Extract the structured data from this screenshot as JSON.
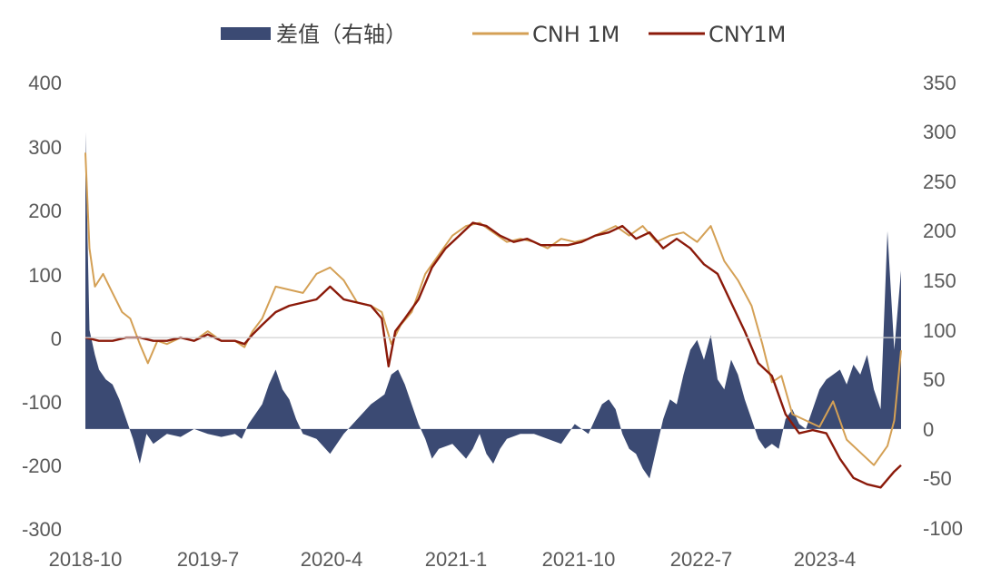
{
  "chart_data": {
    "type": "line",
    "legend": [
      {
        "label": "差值（右轴）",
        "kind": "area",
        "color": "#3b4a73"
      },
      {
        "label": "CNH 1M",
        "kind": "line",
        "color": "#d4a055"
      },
      {
        "label": "CNY1M",
        "kind": "line",
        "color": "#8b1a0a"
      }
    ],
    "legend_position": "top-center",
    "grid": false,
    "x_tick_labels": [
      "2018-10",
      "2019-7",
      "2020-4",
      "2021-1",
      "2021-10",
      "2022-7",
      "2023-4"
    ],
    "y_left": {
      "range": [
        -300,
        400
      ],
      "ticks": [
        "400",
        "300",
        "200",
        "100",
        "0",
        "-100",
        "-200",
        "-300"
      ]
    },
    "y_right": {
      "range": [
        -100,
        350
      ],
      "ticks": [
        "350",
        "300",
        "250",
        "200",
        "150",
        "100",
        "50",
        "0",
        "-50",
        "-100"
      ]
    },
    "x_domain": [
      0,
      60
    ],
    "series": [
      {
        "name": "CNH 1M",
        "axis": "left",
        "color": "#d4a055",
        "points": [
          [
            0,
            290
          ],
          [
            0.3,
            140
          ],
          [
            0.7,
            80
          ],
          [
            1.3,
            100
          ],
          [
            2,
            70
          ],
          [
            2.7,
            40
          ],
          [
            3.3,
            30
          ],
          [
            4,
            -10
          ],
          [
            4.6,
            -40
          ],
          [
            5.3,
            -5
          ],
          [
            6,
            -10
          ],
          [
            7,
            0
          ],
          [
            8,
            -5
          ],
          [
            9,
            10
          ],
          [
            10,
            -5
          ],
          [
            11,
            -5
          ],
          [
            11.7,
            -15
          ],
          [
            12.3,
            10
          ],
          [
            13,
            30
          ],
          [
            14,
            80
          ],
          [
            15,
            75
          ],
          [
            16,
            70
          ],
          [
            17,
            100
          ],
          [
            18,
            110
          ],
          [
            19,
            90
          ],
          [
            20,
            55
          ],
          [
            21,
            50
          ],
          [
            21.8,
            40
          ],
          [
            22.5,
            -10
          ],
          [
            23.2,
            20
          ],
          [
            24,
            40
          ],
          [
            25,
            100
          ],
          [
            26,
            130
          ],
          [
            27,
            160
          ],
          [
            28,
            175
          ],
          [
            29,
            180
          ],
          [
            30,
            165
          ],
          [
            31,
            150
          ],
          [
            32,
            155
          ],
          [
            33,
            150
          ],
          [
            34,
            140
          ],
          [
            35,
            155
          ],
          [
            36,
            150
          ],
          [
            37,
            155
          ],
          [
            38,
            165
          ],
          [
            39,
            175
          ],
          [
            40,
            160
          ],
          [
            41,
            175
          ],
          [
            42,
            150
          ],
          [
            43,
            160
          ],
          [
            44,
            165
          ],
          [
            45,
            150
          ],
          [
            46,
            175
          ],
          [
            47,
            120
          ],
          [
            48,
            90
          ],
          [
            49,
            50
          ],
          [
            49.8,
            -10
          ],
          [
            50.5,
            -70
          ],
          [
            51.2,
            -60
          ],
          [
            52,
            -120
          ],
          [
            53,
            -130
          ],
          [
            54,
            -140
          ],
          [
            55,
            -100
          ],
          [
            56,
            -160
          ],
          [
            57,
            -180
          ],
          [
            58,
            -200
          ],
          [
            59,
            -170
          ],
          [
            59.5,
            -130
          ],
          [
            60,
            -20
          ]
        ]
      },
      {
        "name": "CNY1M",
        "axis": "left",
        "color": "#8b1a0a",
        "points": [
          [
            0,
            0
          ],
          [
            1,
            -5
          ],
          [
            2,
            -5
          ],
          [
            3,
            0
          ],
          [
            4,
            0
          ],
          [
            5,
            -5
          ],
          [
            6,
            -5
          ],
          [
            7,
            0
          ],
          [
            8,
            -5
          ],
          [
            9,
            5
          ],
          [
            10,
            -5
          ],
          [
            11,
            -5
          ],
          [
            11.7,
            -10
          ],
          [
            12.3,
            5
          ],
          [
            13,
            20
          ],
          [
            14,
            40
          ],
          [
            15,
            50
          ],
          [
            16,
            55
          ],
          [
            17,
            60
          ],
          [
            18,
            80
          ],
          [
            19,
            60
          ],
          [
            20,
            55
          ],
          [
            21,
            50
          ],
          [
            21.8,
            30
          ],
          [
            22.3,
            -45
          ],
          [
            22.8,
            10
          ],
          [
            23.5,
            30
          ],
          [
            24.5,
            60
          ],
          [
            25.5,
            110
          ],
          [
            26.5,
            140
          ],
          [
            27.5,
            160
          ],
          [
            28.5,
            180
          ],
          [
            29.5,
            175
          ],
          [
            30.5,
            160
          ],
          [
            31.5,
            150
          ],
          [
            32.5,
            155
          ],
          [
            33.5,
            145
          ],
          [
            34.5,
            145
          ],
          [
            35.5,
            145
          ],
          [
            36.5,
            150
          ],
          [
            37.5,
            160
          ],
          [
            38.5,
            165
          ],
          [
            39.5,
            175
          ],
          [
            40.5,
            155
          ],
          [
            41.5,
            165
          ],
          [
            42.5,
            140
          ],
          [
            43.5,
            155
          ],
          [
            44.5,
            140
          ],
          [
            45.5,
            115
          ],
          [
            46.5,
            100
          ],
          [
            47.5,
            55
          ],
          [
            48.5,
            10
          ],
          [
            49.5,
            -40
          ],
          [
            50.5,
            -60
          ],
          [
            51.5,
            -120
          ],
          [
            52.5,
            -150
          ],
          [
            53.5,
            -145
          ],
          [
            54.5,
            -150
          ],
          [
            55.5,
            -190
          ],
          [
            56.5,
            -220
          ],
          [
            57.5,
            -230
          ],
          [
            58.5,
            -235
          ],
          [
            59.5,
            -210
          ],
          [
            60,
            -200
          ]
        ]
      },
      {
        "name": "差值（右轴）",
        "axis": "right",
        "color": "#3b4a73",
        "points": [
          [
            0,
            300
          ],
          [
            0.3,
            100
          ],
          [
            0.7,
            75
          ],
          [
            1,
            60
          ],
          [
            1.5,
            50
          ],
          [
            2,
            45
          ],
          [
            2.5,
            30
          ],
          [
            3,
            10
          ],
          [
            3.5,
            -10
          ],
          [
            4,
            -35
          ],
          [
            4.5,
            -5
          ],
          [
            5,
            -15
          ],
          [
            5.5,
            -10
          ],
          [
            6,
            -5
          ],
          [
            7,
            -8
          ],
          [
            8,
            0
          ],
          [
            9,
            -5
          ],
          [
            10,
            -8
          ],
          [
            11,
            -5
          ],
          [
            11.5,
            -10
          ],
          [
            12,
            5
          ],
          [
            12.5,
            15
          ],
          [
            13,
            25
          ],
          [
            13.5,
            45
          ],
          [
            14,
            60
          ],
          [
            14.5,
            40
          ],
          [
            15,
            30
          ],
          [
            15.5,
            10
          ],
          [
            16,
            -5
          ],
          [
            17,
            -10
          ],
          [
            18,
            -25
          ],
          [
            18.5,
            -15
          ],
          [
            19,
            -5
          ],
          [
            20,
            10
          ],
          [
            21,
            25
          ],
          [
            21.5,
            30
          ],
          [
            22,
            35
          ],
          [
            22.5,
            55
          ],
          [
            23,
            60
          ],
          [
            23.5,
            45
          ],
          [
            24,
            25
          ],
          [
            24.5,
            5
          ],
          [
            25,
            -10
          ],
          [
            25.5,
            -30
          ],
          [
            26,
            -20
          ],
          [
            27,
            -15
          ],
          [
            28,
            -30
          ],
          [
            28.5,
            -20
          ],
          [
            29,
            -5
          ],
          [
            29.5,
            -25
          ],
          [
            30,
            -35
          ],
          [
            30.5,
            -20
          ],
          [
            31,
            -10
          ],
          [
            32,
            -5
          ],
          [
            33,
            -5
          ],
          [
            34,
            -10
          ],
          [
            35,
            -15
          ],
          [
            36,
            5
          ],
          [
            37,
            -5
          ],
          [
            38,
            25
          ],
          [
            38.5,
            30
          ],
          [
            39,
            20
          ],
          [
            39.5,
            -5
          ],
          [
            40,
            -20
          ],
          [
            40.5,
            -25
          ],
          [
            41,
            -40
          ],
          [
            41.5,
            -50
          ],
          [
            42,
            -20
          ],
          [
            42.5,
            10
          ],
          [
            43,
            30
          ],
          [
            43.5,
            25
          ],
          [
            44,
            55
          ],
          [
            44.5,
            80
          ],
          [
            45,
            90
          ],
          [
            45.5,
            70
          ],
          [
            46,
            95
          ],
          [
            46.5,
            50
          ],
          [
            47,
            40
          ],
          [
            47.5,
            70
          ],
          [
            48,
            55
          ],
          [
            48.5,
            30
          ],
          [
            49,
            10
          ],
          [
            49.5,
            -10
          ],
          [
            50,
            -20
          ],
          [
            50.5,
            -15
          ],
          [
            51,
            -20
          ],
          [
            51.5,
            10
          ],
          [
            52,
            20
          ],
          [
            52.5,
            5
          ],
          [
            53,
            0
          ],
          [
            53.5,
            20
          ],
          [
            54,
            40
          ],
          [
            54.5,
            50
          ],
          [
            55,
            55
          ],
          [
            55.5,
            60
          ],
          [
            56,
            45
          ],
          [
            56.5,
            65
          ],
          [
            57,
            55
          ],
          [
            57.5,
            75
          ],
          [
            58,
            40
          ],
          [
            58.5,
            20
          ],
          [
            59,
            200
          ],
          [
            59.5,
            80
          ],
          [
            60,
            160
          ]
        ]
      }
    ]
  }
}
